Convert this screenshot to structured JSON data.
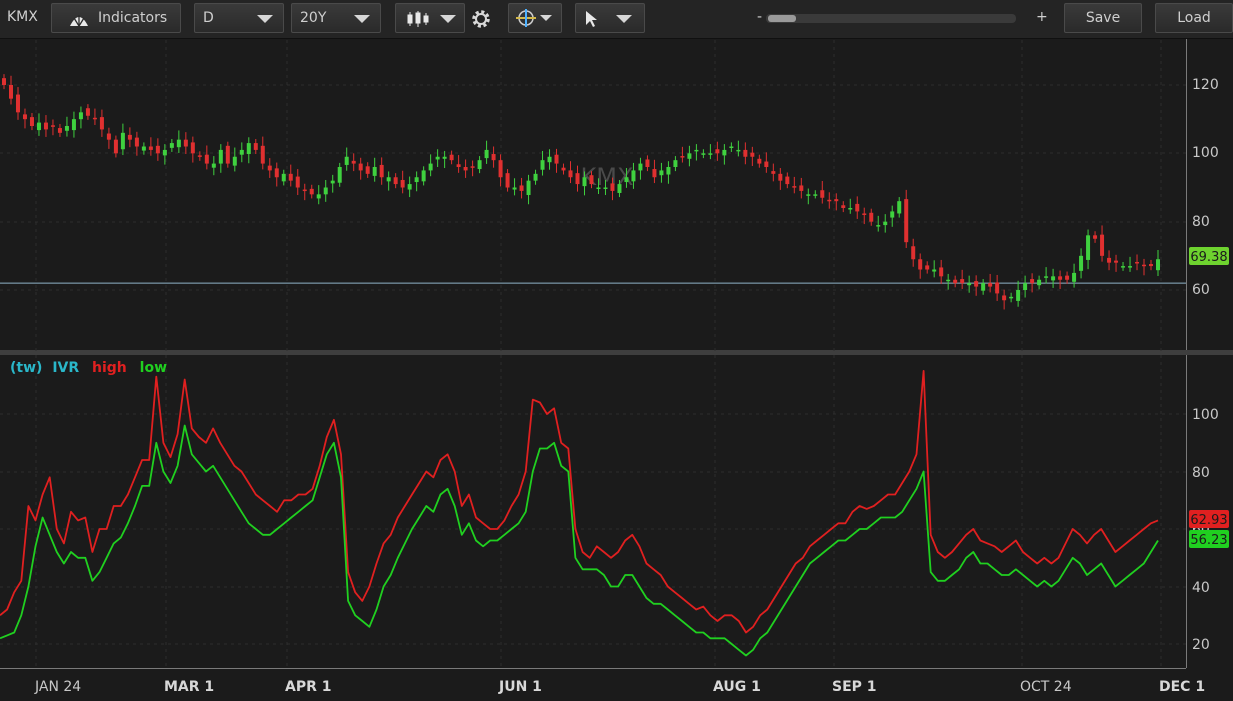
{
  "toolbar": {
    "symbol": "KMX",
    "indicators_label": "Indicators",
    "aggregation": "D",
    "timeframe": "20Y",
    "zoom_minus": "-",
    "zoom_plus": "+",
    "save_label": "Save",
    "load_label": "Load",
    "icons": [
      "gear-icon",
      "candlestick-style-icon",
      "crosshair-icon",
      "pointer-icon"
    ]
  },
  "price_panel": {
    "watermark": "KMX",
    "y_ticks": [
      "120",
      "100",
      "80",
      "60"
    ],
    "last_price": "69.38",
    "colors": {
      "up": "#3fd13f",
      "down": "#e03030",
      "last_badge": "#6ed32f"
    }
  },
  "ivr_panel": {
    "legend": {
      "prefix": "(tw)",
      "name": "IVR",
      "high": "high",
      "low": "low"
    },
    "y_ticks": [
      "100",
      "80",
      "60",
      "40",
      "20"
    ],
    "high_value": "62.93",
    "low_value": "56.23",
    "colors": {
      "high": "#e02020",
      "low": "#20d020",
      "legend_prefix": "#2ab7c9"
    }
  },
  "x_axis": {
    "labels": [
      "JAN 24",
      "MAR 1",
      "APR 1",
      "JUN 1",
      "AUG 1",
      "SEP 1",
      "OCT 24",
      "DEC 1"
    ]
  },
  "chart_data": [
    {
      "type": "candlestick",
      "title": "KMX",
      "ylim": [
        45,
        125
      ],
      "last": 69.38,
      "closes": [
        120,
        116,
        112,
        110,
        108,
        109,
        107,
        108,
        106,
        108,
        110,
        112,
        111,
        110,
        107,
        104,
        100,
        106,
        104,
        102,
        102,
        101,
        100,
        101,
        103,
        104,
        102,
        100,
        99,
        97,
        97,
        101,
        97,
        99,
        101,
        103,
        101,
        97,
        95,
        93,
        94,
        92,
        90,
        89,
        88,
        88,
        90,
        92,
        96,
        99,
        97,
        95,
        94,
        96,
        93,
        93,
        91,
        90,
        91,
        93,
        95,
        97,
        99,
        99,
        98,
        96,
        95,
        96,
        98,
        101,
        98,
        93,
        90,
        90,
        89,
        92,
        94,
        98,
        99,
        97,
        95,
        93,
        91,
        93,
        91,
        90,
        90,
        89,
        91,
        93,
        95,
        97,
        96,
        93,
        95,
        96,
        98,
        99,
        100,
        101,
        100,
        100,
        100,
        101,
        102,
        101,
        99,
        99,
        97,
        96,
        94,
        92,
        91,
        90,
        89,
        88,
        88,
        87,
        86,
        86,
        84,
        84,
        83,
        82,
        80,
        79,
        80,
        83,
        86,
        74,
        69,
        66,
        66,
        66,
        64,
        63,
        62,
        62,
        62,
        61,
        62,
        61,
        59,
        57,
        58,
        60,
        62,
        62,
        63,
        64,
        64,
        63,
        63,
        65,
        70,
        76,
        75,
        70,
        68,
        68,
        67,
        67,
        68,
        67,
        67,
        69
      ]
    },
    {
      "type": "line",
      "series": [
        {
          "name": "high",
          "values": [
            30,
            32,
            38,
            42,
            68,
            63,
            72,
            78,
            60,
            55,
            66,
            63,
            64,
            52,
            60,
            60,
            68,
            68,
            72,
            78,
            84,
            84,
            113,
            90,
            85,
            93,
            112,
            95,
            92,
            90,
            95,
            90,
            86,
            82,
            80,
            76,
            72,
            70,
            68,
            66,
            70,
            70,
            72,
            72,
            74,
            82,
            92,
            98,
            86,
            45,
            38,
            35,
            40,
            48,
            55,
            58,
            64,
            68,
            72,
            76,
            80,
            78,
            84,
            86,
            80,
            68,
            72,
            64,
            62,
            60,
            60,
            63,
            68,
            72,
            80,
            105,
            104,
            100,
            102,
            90,
            88,
            60,
            52,
            50,
            54,
            52,
            50,
            52,
            56,
            58,
            54,
            48,
            46,
            44,
            40,
            38,
            36,
            34,
            32,
            33,
            30,
            28,
            30,
            30,
            28,
            24,
            26,
            30,
            32,
            36,
            40,
            44,
            48,
            50,
            54,
            56,
            58,
            60,
            62,
            62,
            66,
            68,
            67,
            68,
            70,
            72,
            72,
            76,
            80,
            86,
            115,
            58,
            52,
            50,
            52,
            55,
            58,
            60,
            56,
            55,
            54,
            52,
            54,
            56,
            52,
            50,
            48,
            50,
            48,
            50,
            55,
            60,
            58,
            55,
            58,
            60,
            56,
            52,
            54,
            56,
            58,
            60,
            62,
            63
          ]
        },
        {
          "name": "low",
          "values": [
            22,
            23,
            24,
            30,
            40,
            54,
            64,
            58,
            52,
            48,
            52,
            50,
            50,
            42,
            45,
            50,
            55,
            57,
            62,
            68,
            75,
            75,
            90,
            80,
            76,
            82,
            96,
            86,
            83,
            80,
            82,
            78,
            74,
            70,
            66,
            62,
            60,
            58,
            58,
            60,
            62,
            64,
            66,
            68,
            70,
            78,
            86,
            90,
            78,
            35,
            30,
            28,
            26,
            32,
            40,
            44,
            50,
            55,
            60,
            64,
            68,
            66,
            72,
            74,
            68,
            58,
            62,
            56,
            54,
            56,
            56,
            58,
            60,
            62,
            66,
            80,
            88,
            88,
            90,
            82,
            80,
            50,
            46,
            46,
            46,
            44,
            40,
            40,
            44,
            44,
            40,
            36,
            34,
            34,
            32,
            30,
            28,
            26,
            24,
            24,
            22,
            22,
            22,
            20,
            18,
            16,
            18,
            22,
            24,
            28,
            32,
            36,
            40,
            44,
            48,
            50,
            52,
            54,
            56,
            56,
            58,
            60,
            60,
            62,
            64,
            64,
            64,
            66,
            70,
            74,
            80,
            45,
            42,
            42,
            44,
            46,
            50,
            52,
            48,
            48,
            46,
            44,
            44,
            46,
            44,
            42,
            40,
            42,
            40,
            42,
            46,
            50,
            48,
            44,
            46,
            48,
            44,
            40,
            42,
            44,
            46,
            48,
            52,
            56
          ]
        }
      ],
      "ylim": [
        15,
        120
      ],
      "last_high": 62.93,
      "last_low": 56.23
    }
  ]
}
